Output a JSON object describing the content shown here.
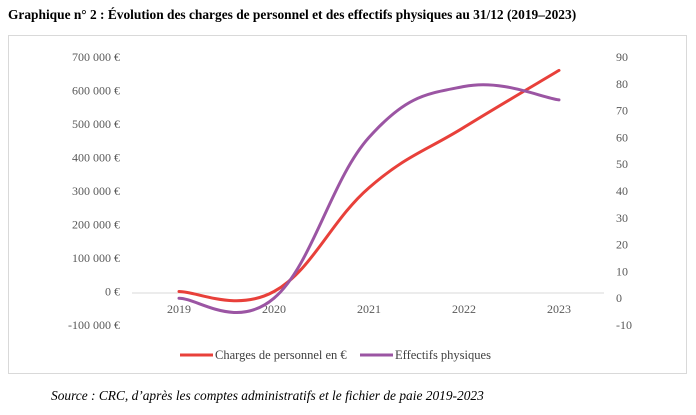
{
  "title": "Graphique n° 2 : Évolution des charges de personnel et des effectifs physiques au 31/12 (2019–2023)",
  "source": "Source : CRC, d’après les comptes administratifs et le fichier de paie 2019-2023",
  "chart_data": {
    "type": "line",
    "x": [
      "2019",
      "2020",
      "2021",
      "2022",
      "2023"
    ],
    "y_left": {
      "ticks": [
        "700 000 €",
        "600 000 €",
        "500 000 €",
        "400 000 €",
        "300 000 €",
        "200 000 €",
        "100 000 €",
        "0 €",
        "-100 000 €"
      ],
      "ylim": [
        -100000,
        700000
      ]
    },
    "y_right": {
      "ticks": [
        "90",
        "80",
        "70",
        "60",
        "50",
        "40",
        "30",
        "20",
        "10",
        "0",
        "-10"
      ],
      "ylim": [
        -10,
        90
      ]
    },
    "grid": false,
    "legend": "bottom",
    "series": [
      {
        "name": "Charges de personnel en €",
        "axis": "left",
        "color": "#e8403a",
        "values": [
          0,
          0,
          310000,
          490000,
          660000
        ]
      },
      {
        "name": "Effectifs physiques",
        "axis": "right",
        "color": "#9b55a3",
        "values": [
          0,
          0,
          60,
          79,
          74
        ]
      }
    ]
  }
}
